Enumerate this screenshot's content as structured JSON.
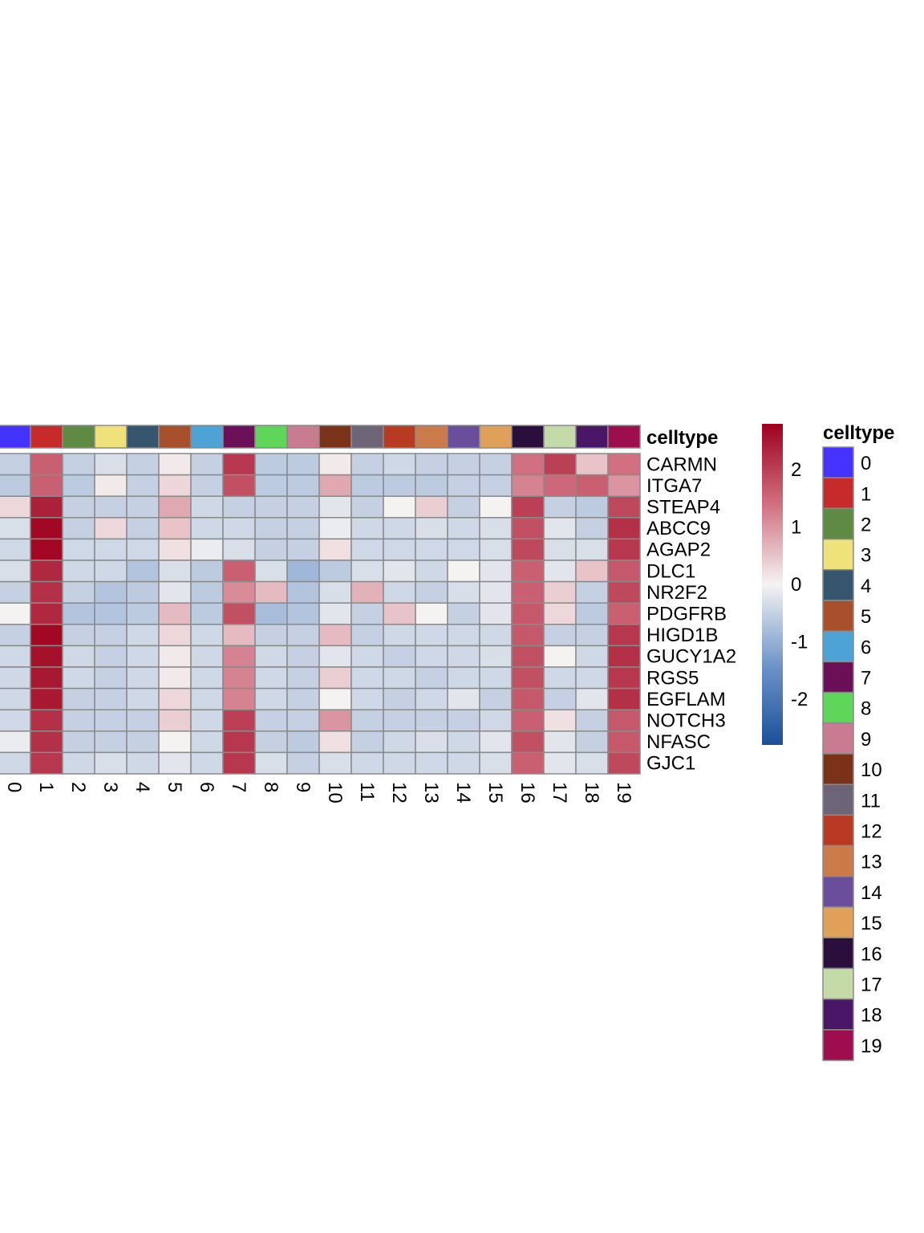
{
  "chart_data": {
    "type": "heatmap",
    "annotation_title": "celltype",
    "legend_title": "celltype",
    "columns": [
      "0",
      "1",
      "2",
      "3",
      "4",
      "5",
      "6",
      "7",
      "8",
      "9",
      "10",
      "11",
      "12",
      "13",
      "14",
      "15",
      "16",
      "17",
      "18",
      "19"
    ],
    "column_colors": [
      "#4433ff",
      "#c62a2a",
      "#5e8a44",
      "#efe27a",
      "#35566e",
      "#a8502c",
      "#4ea3d6",
      "#6b0f56",
      "#5fd55a",
      "#c97b92",
      "#7a3219",
      "#6e6478",
      "#b93a22",
      "#cb7b4a",
      "#6a4e9c",
      "#dfa15a",
      "#2a0f3d",
      "#c4dba8",
      "#4a1767",
      "#9e0d4e"
    ],
    "rows": [
      "CARMN",
      "ITGA7",
      "STEAP4",
      "ABCC9",
      "AGAP2",
      "DLC1",
      "NR2F2",
      "PDGFRB",
      "HIGD1B",
      "GUCY1A2",
      "RGS5",
      "EGFLAM",
      "NOTCH3",
      "NFASC",
      "GJC1"
    ],
    "values": [
      [
        -0.5,
        1.6,
        -0.5,
        -0.3,
        -0.5,
        0.1,
        -0.5,
        2.1,
        -0.6,
        -0.6,
        0.1,
        -0.5,
        -0.4,
        -0.5,
        -0.5,
        -0.5,
        1.4,
        2.0,
        0.5,
        1.4
      ],
      [
        -0.6,
        1.6,
        -0.6,
        0.1,
        -0.5,
        0.3,
        -0.5,
        1.8,
        -0.6,
        -0.6,
        0.8,
        -0.6,
        -0.6,
        -0.6,
        -0.5,
        -0.5,
        1.2,
        1.5,
        1.6,
        1.0
      ],
      [
        0.3,
        2.4,
        -0.5,
        -0.5,
        -0.5,
        0.8,
        -0.4,
        -0.5,
        -0.5,
        -0.5,
        -0.2,
        -0.5,
        0.0,
        0.4,
        -0.5,
        0.0,
        2.0,
        -0.5,
        -0.6,
        1.9
      ],
      [
        -0.3,
        2.7,
        -0.5,
        0.3,
        -0.5,
        0.5,
        -0.4,
        -0.4,
        -0.5,
        -0.5,
        -0.1,
        -0.4,
        -0.4,
        -0.3,
        -0.4,
        -0.3,
        1.8,
        -0.2,
        -0.5,
        2.2
      ],
      [
        -0.4,
        2.7,
        -0.4,
        -0.4,
        -0.4,
        0.2,
        -0.1,
        -0.3,
        -0.5,
        -0.5,
        0.2,
        -0.4,
        -0.4,
        -0.4,
        -0.4,
        -0.3,
        1.9,
        -0.3,
        -0.3,
        2.1
      ],
      [
        -0.3,
        2.3,
        -0.4,
        -0.4,
        -0.7,
        -0.3,
        -0.6,
        1.6,
        -0.3,
        -0.9,
        -0.6,
        -0.3,
        -0.2,
        -0.4,
        0.0,
        -0.2,
        1.6,
        -0.2,
        0.5,
        1.7
      ],
      [
        -0.5,
        2.2,
        -0.5,
        -0.7,
        -0.6,
        -0.2,
        -0.6,
        1.1,
        0.6,
        -0.7,
        -0.3,
        0.7,
        -0.4,
        -0.5,
        -0.3,
        -0.2,
        1.6,
        0.4,
        -0.5,
        1.9
      ],
      [
        0.0,
        2.3,
        -0.7,
        -0.7,
        -0.6,
        0.6,
        -0.6,
        1.8,
        -0.8,
        -0.7,
        -0.2,
        -0.5,
        0.5,
        0.0,
        -0.5,
        -0.2,
        1.7,
        0.3,
        -0.6,
        1.6
      ],
      [
        -0.5,
        2.7,
        -0.5,
        -0.5,
        -0.4,
        0.3,
        -0.4,
        0.6,
        -0.5,
        -0.5,
        0.6,
        -0.5,
        -0.4,
        -0.4,
        -0.4,
        -0.4,
        1.7,
        -0.5,
        -0.5,
        2.1
      ],
      [
        -0.4,
        2.6,
        -0.4,
        -0.5,
        -0.4,
        0.1,
        -0.4,
        1.2,
        -0.4,
        -0.5,
        -0.2,
        -0.4,
        -0.5,
        -0.4,
        -0.4,
        -0.3,
        1.8,
        0.0,
        -0.4,
        2.2
      ],
      [
        -0.4,
        2.5,
        -0.4,
        -0.5,
        -0.4,
        0.1,
        -0.4,
        1.2,
        -0.4,
        -0.5,
        0.4,
        -0.4,
        -0.4,
        -0.5,
        -0.4,
        -0.4,
        1.8,
        -0.4,
        -0.4,
        2.1
      ],
      [
        -0.4,
        2.5,
        -0.5,
        -0.5,
        -0.4,
        0.3,
        -0.4,
        1.2,
        -0.4,
        -0.5,
        0.0,
        -0.4,
        -0.5,
        -0.4,
        -0.2,
        -0.5,
        1.7,
        -0.5,
        -0.2,
        2.2
      ],
      [
        -0.4,
        2.2,
        -0.5,
        -0.5,
        -0.5,
        0.4,
        -0.4,
        2.0,
        -0.5,
        -0.5,
        1.0,
        -0.5,
        -0.5,
        -0.5,
        -0.5,
        -0.4,
        1.6,
        0.2,
        -0.5,
        1.7
      ],
      [
        -0.1,
        2.2,
        -0.5,
        -0.5,
        -0.5,
        0.0,
        -0.4,
        2.1,
        -0.5,
        -0.6,
        0.2,
        -0.5,
        -0.4,
        -0.3,
        -0.4,
        -0.2,
        1.8,
        -0.2,
        -0.5,
        1.7
      ],
      [
        -0.4,
        2.1,
        -0.4,
        -0.3,
        -0.4,
        -0.2,
        -0.4,
        2.1,
        -0.3,
        -0.5,
        -0.3,
        -0.4,
        -0.4,
        -0.4,
        -0.4,
        -0.3,
        1.6,
        -0.2,
        -0.3,
        1.9
      ]
    ],
    "colorbar": {
      "range": [
        -2.8,
        2.8
      ],
      "ticks": [
        2,
        1,
        0,
        -1,
        -2
      ],
      "tick_labels": [
        "2",
        "1",
        "0",
        "-1",
        "-2"
      ],
      "color_stops": [
        {
          "value": -2.8,
          "color": "#1b4f99"
        },
        {
          "value": -1.4,
          "color": "#6f95c9"
        },
        {
          "value": 0,
          "color": "#f5f3f2"
        },
        {
          "value": 1.4,
          "color": "#d07080"
        },
        {
          "value": 2.8,
          "color": "#9e001c"
        }
      ]
    }
  }
}
